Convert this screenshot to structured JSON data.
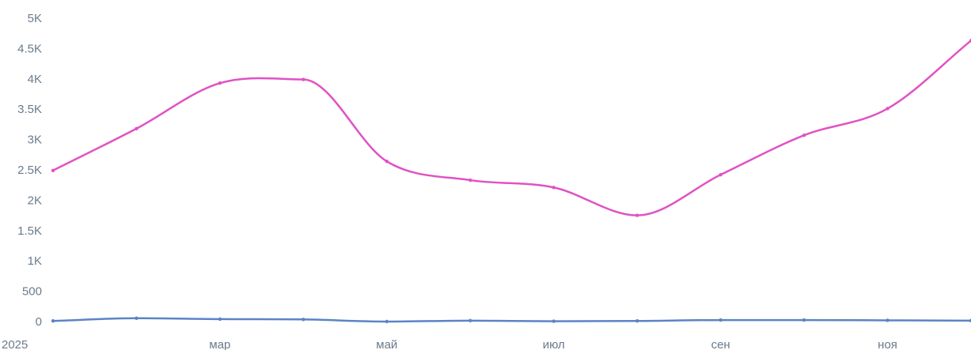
{
  "chart_data": {
    "type": "line",
    "x": [
      "2025-01",
      "2025-02",
      "2025-03",
      "2025-04",
      "2025-05",
      "2025-06",
      "2025-07",
      "2025-08",
      "2025-09",
      "2025-10",
      "2025-11",
      "2025-12"
    ],
    "x_tick_labels": [
      "2025",
      "мар",
      "май",
      "июл",
      "сен",
      "ноя"
    ],
    "y_tick_labels": [
      "0",
      "500",
      "1K",
      "1.5K",
      "2K",
      "2.5K",
      "3K",
      "3.5K",
      "4K",
      "4.5K",
      "5K"
    ],
    "ylim": [
      0,
      5000
    ],
    "grid": false,
    "legend": "none",
    "series": [
      {
        "color": "#e052c4",
        "values": [
          2490,
          3180,
          3930,
          3990,
          2640,
          2330,
          2210,
          1750,
          2420,
          3070,
          3510,
          4630
        ]
      },
      {
        "color": "#5b84c4",
        "values": [
          10,
          55,
          40,
          35,
          0,
          15,
          5,
          10,
          25,
          25,
          20,
          15
        ]
      }
    ]
  }
}
